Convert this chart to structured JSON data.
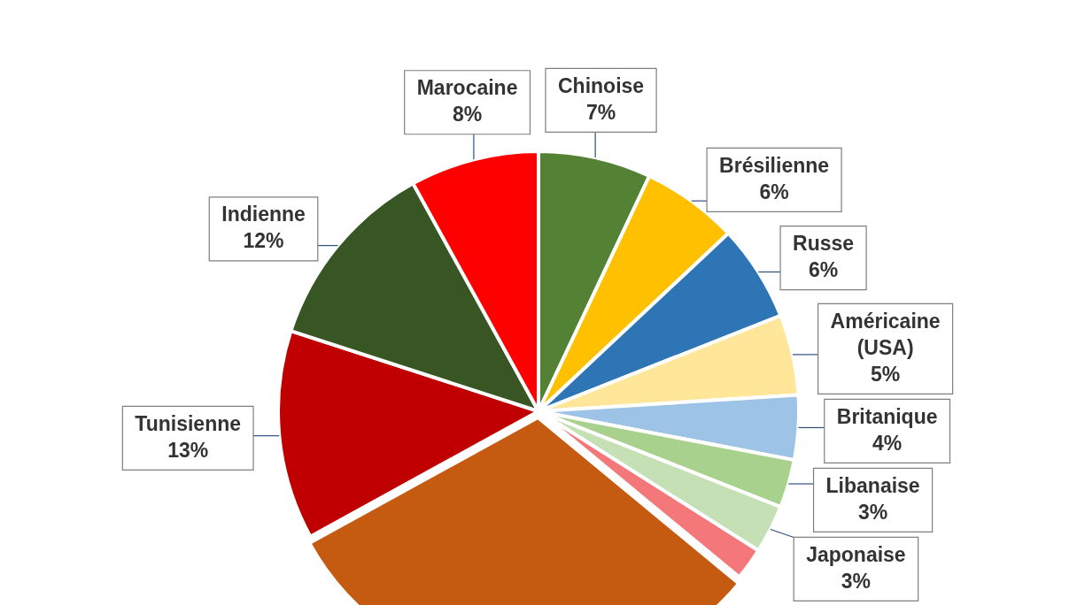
{
  "chart_data": {
    "type": "pie",
    "categories": [
      "Chinoise",
      "Brésilienne",
      "Russe",
      "Américaine (USA)",
      "Britanique",
      "Libanaise",
      "Japonaise",
      null,
      null,
      "Tunisienne",
      "Indienne",
      "Marocaine"
    ],
    "values": [
      7,
      6,
      6,
      5,
      4,
      3,
      3,
      2,
      31,
      13,
      12,
      8
    ],
    "colors": [
      "#548235",
      "#ffc000",
      "#2e75b6",
      "#ffe699",
      "#9dc3e6",
      "#a9d18e",
      "#c5e0b4",
      "#f4777a",
      "#c55a11",
      "#c00000",
      "#375623",
      "#ff0000"
    ],
    "value_labels": [
      "7%",
      "6%",
      "6%",
      "5%",
      "4%",
      "3%",
      "3%",
      null,
      null,
      "13%",
      "12%",
      "8%"
    ],
    "legend": false
  }
}
